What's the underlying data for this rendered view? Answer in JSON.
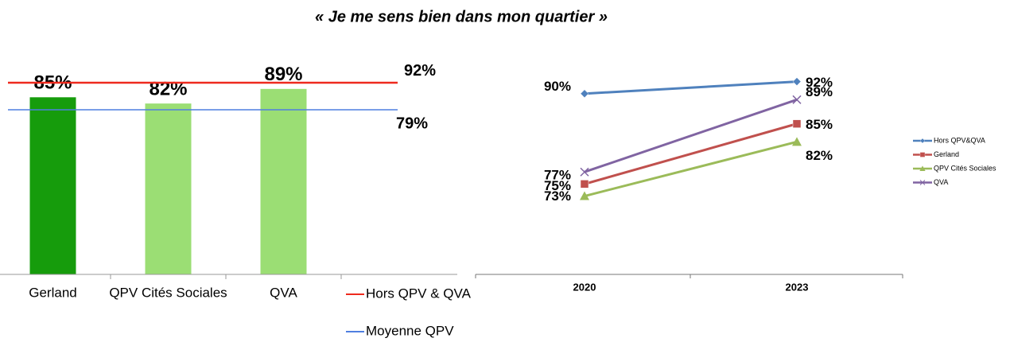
{
  "title": "« Je me sens bien dans mon quartier »",
  "chart_data": [
    {
      "type": "bar",
      "categories": [
        "Gerland",
        "QPV Cités Sociales",
        "QVA"
      ],
      "values": [
        85,
        82,
        89
      ],
      "value_labels": [
        "85%",
        "82%",
        "89%"
      ],
      "colors": [
        "#169c0c",
        "#9bde74",
        "#9bde74"
      ],
      "ylim": [
        0,
        100
      ],
      "lines": [
        {
          "name": "Hors QPV & QVA",
          "value": 92,
          "value_label": "92%",
          "color": "#ee2a1e"
        },
        {
          "name": "Moyenne QPV",
          "value": 79,
          "value_label": "79%",
          "color": "#4f7fe0"
        }
      ]
    },
    {
      "type": "line",
      "categories": [
        "2020",
        "2023"
      ],
      "ylim": [
        60,
        100
      ],
      "series": [
        {
          "name": "Hors QPV&QVA",
          "color": "#4f81bd",
          "marker": "diamond",
          "values": [
            90,
            92
          ],
          "value_labels": [
            "90%",
            "92%"
          ]
        },
        {
          "name": "Gerland",
          "color": "#c0504d",
          "marker": "square",
          "values": [
            75,
            85
          ],
          "value_labels": [
            "75%",
            "85%"
          ]
        },
        {
          "name": "QPV Cités Sociales",
          "color": "#9bbb59",
          "marker": "triangle",
          "values": [
            73,
            82
          ],
          "value_labels": [
            "73%",
            "82%"
          ]
        },
        {
          "name": "QVA",
          "color": "#8064a2",
          "marker": "x",
          "values": [
            77,
            89
          ],
          "value_labels": [
            "77%",
            "89%"
          ]
        }
      ]
    }
  ]
}
